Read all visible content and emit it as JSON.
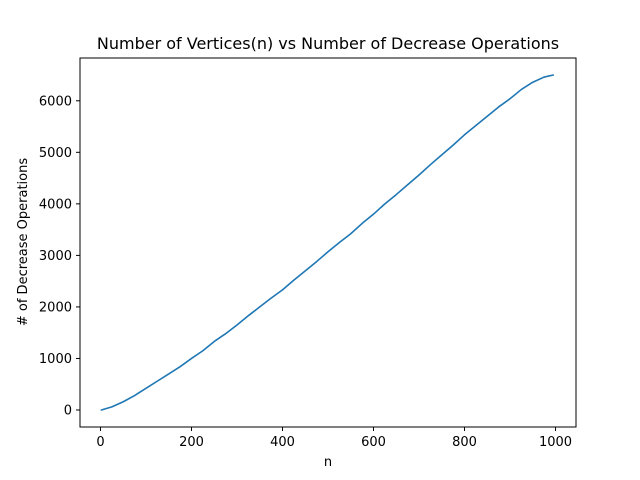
{
  "chart_data": {
    "type": "line",
    "title": "Number of Vertices(n) vs Number of Decrease Operations",
    "xlabel": "n",
    "ylabel": "# of Decrease Operations",
    "xlim": [
      -45,
      1045
    ],
    "ylim": [
      -330,
      6830
    ],
    "xticks": [
      0,
      200,
      400,
      600,
      800,
      1000
    ],
    "yticks": [
      0,
      1000,
      2000,
      3000,
      4000,
      5000,
      6000
    ],
    "grid": false,
    "legend": "none",
    "colors": {
      "series": "#1f77b4"
    },
    "series": [
      {
        "x": [
          2,
          25,
          50,
          75,
          100,
          125,
          150,
          175,
          200,
          225,
          250,
          275,
          300,
          325,
          350,
          375,
          400,
          425,
          450,
          475,
          500,
          525,
          550,
          575,
          600,
          625,
          650,
          675,
          700,
          725,
          750,
          775,
          800,
          825,
          850,
          875,
          900,
          925,
          950,
          975,
          995
        ],
        "values": [
          0,
          60,
          160,
          280,
          420,
          560,
          700,
          840,
          1000,
          1150,
          1330,
          1480,
          1650,
          1830,
          2000,
          2170,
          2330,
          2520,
          2700,
          2880,
          3070,
          3250,
          3420,
          3620,
          3800,
          4000,
          4180,
          4370,
          4560,
          4760,
          4950,
          5140,
          5340,
          5520,
          5700,
          5880,
          6040,
          6220,
          6360,
          6460,
          6500
        ]
      }
    ]
  }
}
